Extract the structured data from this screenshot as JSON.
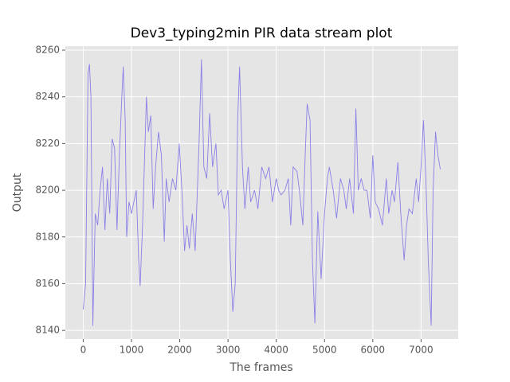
{
  "chart_data": {
    "type": "line",
    "title": "Dev3_typing2min PIR data stream plot",
    "x_label": "The frames",
    "y_label": "Output",
    "color": "#8a80e6",
    "grid": true,
    "x": [
      0,
      50,
      100,
      130,
      160,
      200,
      250,
      300,
      350,
      400,
      450,
      500,
      550,
      600,
      650,
      700,
      750,
      800,
      830,
      870,
      900,
      950,
      1000,
      1050,
      1100,
      1150,
      1180,
      1230,
      1310,
      1350,
      1400,
      1450,
      1500,
      1560,
      1620,
      1680,
      1720,
      1780,
      1850,
      1920,
      1990,
      2050,
      2100,
      2150,
      2200,
      2260,
      2320,
      2400,
      2450,
      2500,
      2560,
      2620,
      2680,
      2750,
      2800,
      2860,
      2920,
      3000,
      3050,
      3100,
      3150,
      3200,
      3240,
      3300,
      3350,
      3420,
      3470,
      3550,
      3620,
      3700,
      3780,
      3850,
      3920,
      4000,
      4050,
      4100,
      4180,
      4250,
      4300,
      4350,
      4430,
      4480,
      4550,
      4600,
      4640,
      4700,
      4750,
      4800,
      4860,
      4930,
      5000,
      5060,
      5100,
      5180,
      5250,
      5330,
      5400,
      5450,
      5520,
      5600,
      5650,
      5700,
      5760,
      5820,
      5880,
      5950,
      6000,
      6050,
      6120,
      6200,
      6280,
      6330,
      6400,
      6450,
      6520,
      6580,
      6650,
      6700,
      6750,
      6820,
      6900,
      6950,
      7000,
      7050,
      7100,
      7150,
      7210,
      7250,
      7300,
      7350,
      7400
    ],
    "values": [
      8149,
      8160,
      8250,
      8254,
      8240,
      8142,
      8190,
      8185,
      8200,
      8210,
      8183,
      8205,
      8190,
      8222,
      8218,
      8183,
      8215,
      8240,
      8253,
      8230,
      8180,
      8195,
      8190,
      8195,
      8200,
      8170,
      8159,
      8185,
      8240,
      8225,
      8232,
      8192,
      8210,
      8225,
      8215,
      8178,
      8205,
      8195,
      8205,
      8200,
      8220,
      8198,
      8174,
      8185,
      8175,
      8190,
      8174,
      8220,
      8256,
      8210,
      8205,
      8233,
      8210,
      8220,
      8198,
      8200,
      8192,
      8200,
      8170,
      8148,
      8160,
      8230,
      8253,
      8210,
      8192,
      8210,
      8195,
      8200,
      8192,
      8210,
      8205,
      8210,
      8195,
      8205,
      8200,
      8198,
      8200,
      8205,
      8185,
      8210,
      8208,
      8200,
      8185,
      8215,
      8237,
      8230,
      8170,
      8143,
      8191,
      8162,
      8190,
      8205,
      8210,
      8200,
      8188,
      8205,
      8200,
      8192,
      8205,
      8190,
      8235,
      8200,
      8205,
      8200,
      8200,
      8188,
      8215,
      8195,
      8192,
      8185,
      8205,
      8190,
      8200,
      8195,
      8212,
      8190,
      8170,
      8185,
      8192,
      8190,
      8205,
      8195,
      8210,
      8230,
      8205,
      8170,
      8142,
      8200,
      8225,
      8215,
      8209
    ],
    "xlim": [
      -370,
      7770
    ],
    "ylim": [
      8136.3,
      8261.7
    ],
    "xticks": [
      0,
      1000,
      2000,
      3000,
      4000,
      5000,
      6000,
      7000
    ],
    "yticks": [
      8140,
      8160,
      8180,
      8200,
      8220,
      8240,
      8260
    ]
  }
}
